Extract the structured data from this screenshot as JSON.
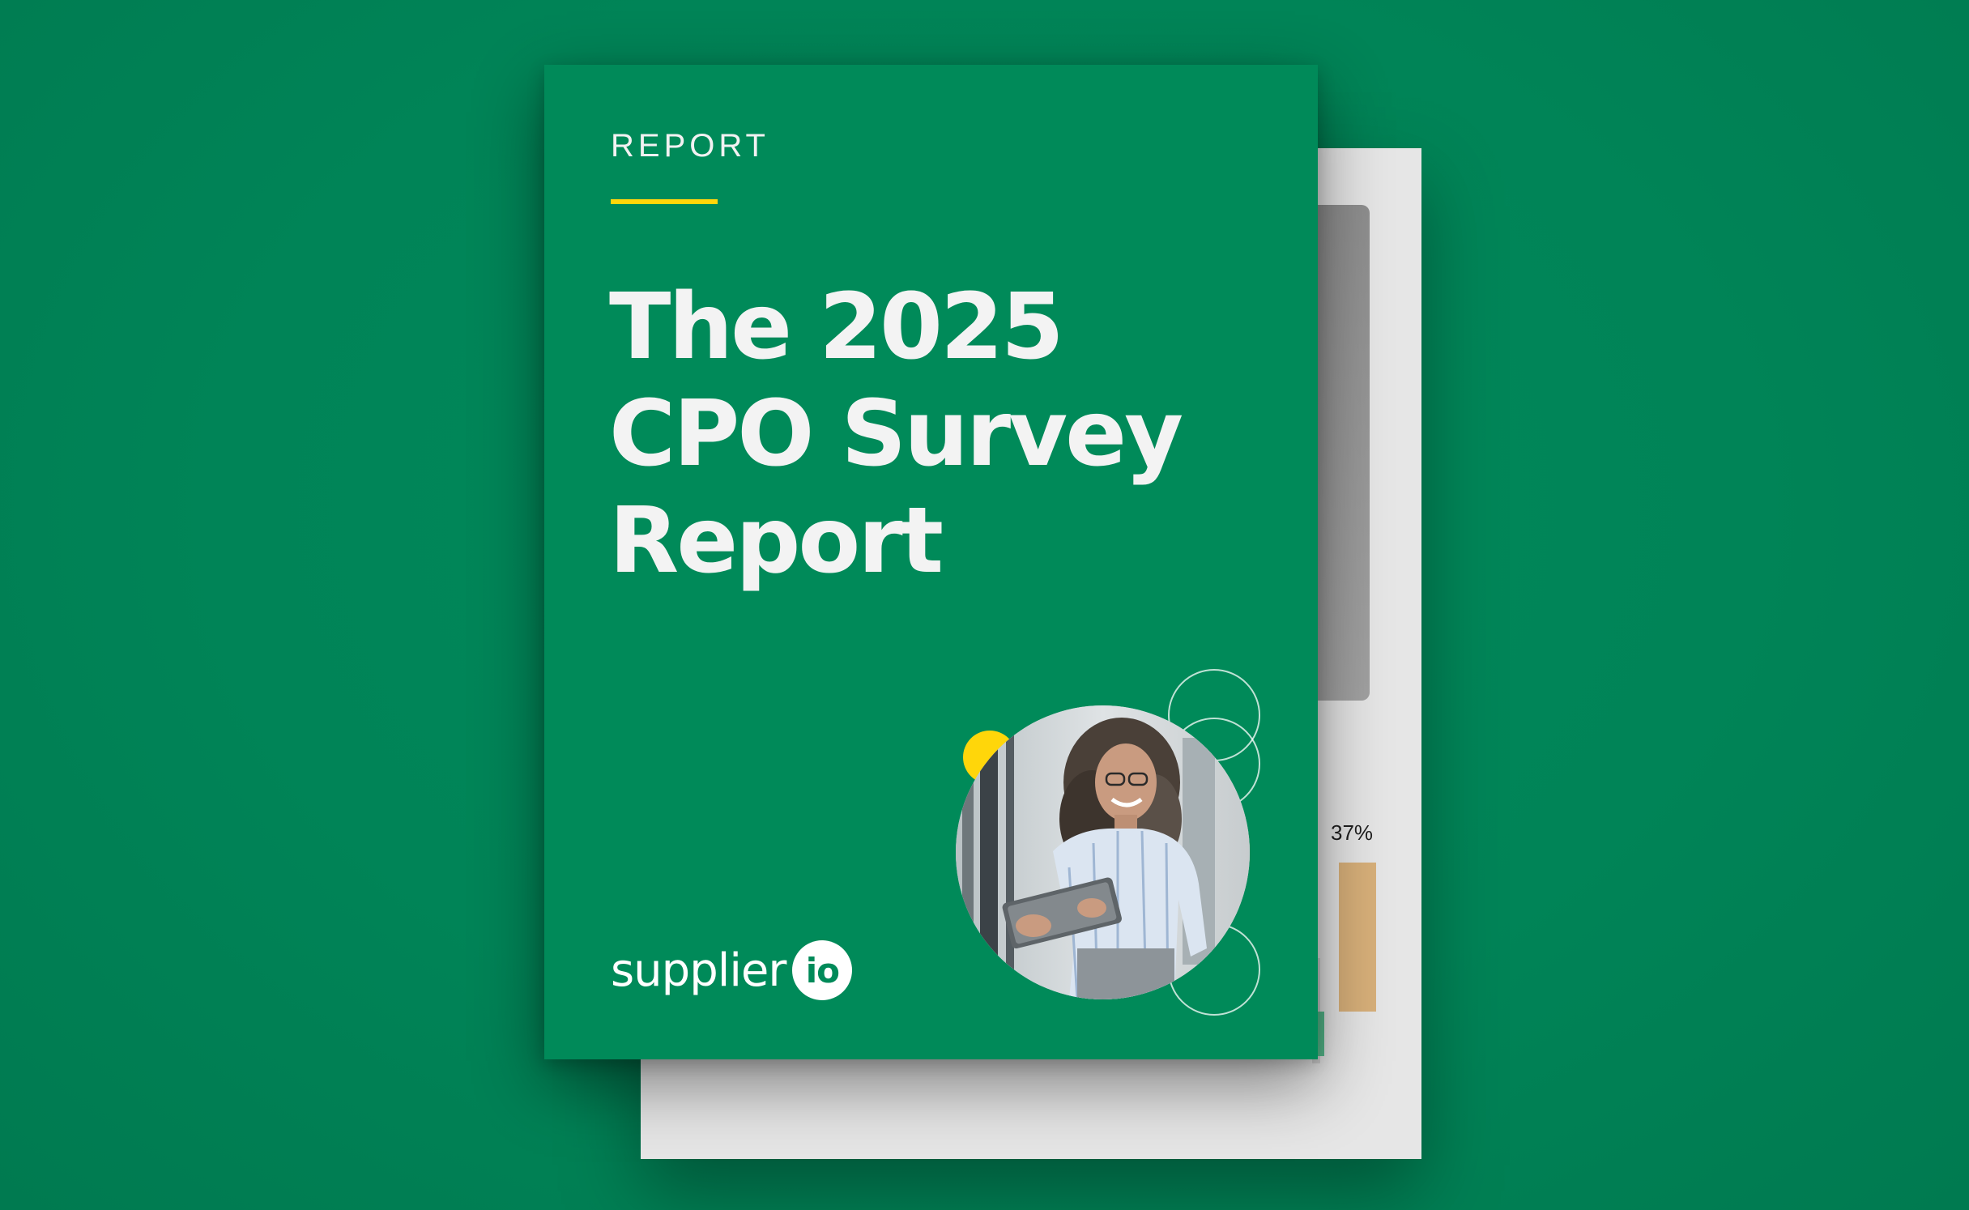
{
  "cover": {
    "eyebrow": "REPORT",
    "title_lines": [
      "The 2025",
      "CPO Survey",
      "Report"
    ],
    "logo": {
      "word": "supplier",
      "badge": "io"
    }
  },
  "back_page": {
    "percent_label": "37%"
  },
  "colors": {
    "background": "#008a59",
    "cover": "#008a59",
    "accent_yellow": "#ffd60a",
    "back_page": "#e6e6e6",
    "bar_gold": "#d8b07a",
    "text_light": "#f3f3f3"
  },
  "icons": {
    "photo": "person-with-tablet-photo",
    "dot": "yellow-accent-dot",
    "rings": "outline-circle-icon"
  }
}
